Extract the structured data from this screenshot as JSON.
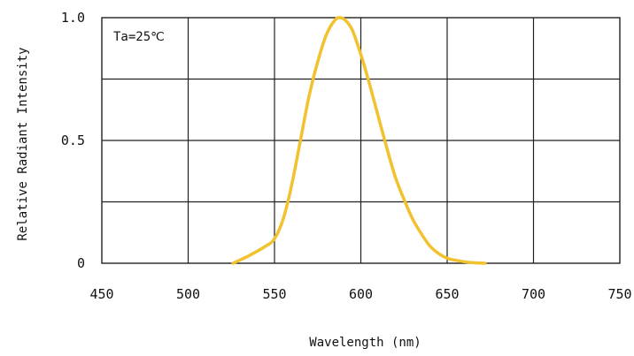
{
  "chart_data": {
    "type": "line",
    "title": "",
    "xlabel": "Wavelength (nm)",
    "ylabel": "Relative Radiant Intensity",
    "annotation": "Ta=25℃",
    "xlim": [
      450,
      750
    ],
    "ylim": [
      0,
      1.0
    ],
    "x_ticks": [
      450,
      500,
      550,
      600,
      650,
      700,
      750
    ],
    "x_tick_labels": [
      "450",
      "500",
      "550",
      "600",
      "650",
      "700",
      "750"
    ],
    "y_ticks": [
      0,
      0.25,
      0.5,
      0.75,
      1.0
    ],
    "y_tick_labels": [
      "0",
      "0.5",
      "1.0"
    ],
    "y_labeled_ticks": [
      0,
      0.5,
      1.0
    ],
    "grid": true,
    "series": [
      {
        "color": "#f2c12e",
        "x": [
          526,
          535,
          545,
          550,
          555,
          560,
          565,
          570,
          575,
          580,
          585,
          588,
          591,
          595,
          600,
          605,
          610,
          615,
          620,
          625,
          630,
          635,
          640,
          645,
          650,
          655,
          660,
          665,
          672
        ],
        "y": [
          0.0,
          0.03,
          0.07,
          0.1,
          0.18,
          0.32,
          0.5,
          0.68,
          0.82,
          0.93,
          0.99,
          1.0,
          0.99,
          0.95,
          0.85,
          0.73,
          0.6,
          0.47,
          0.35,
          0.26,
          0.18,
          0.12,
          0.07,
          0.04,
          0.02,
          0.012,
          0.006,
          0.002,
          0.0
        ]
      }
    ]
  }
}
